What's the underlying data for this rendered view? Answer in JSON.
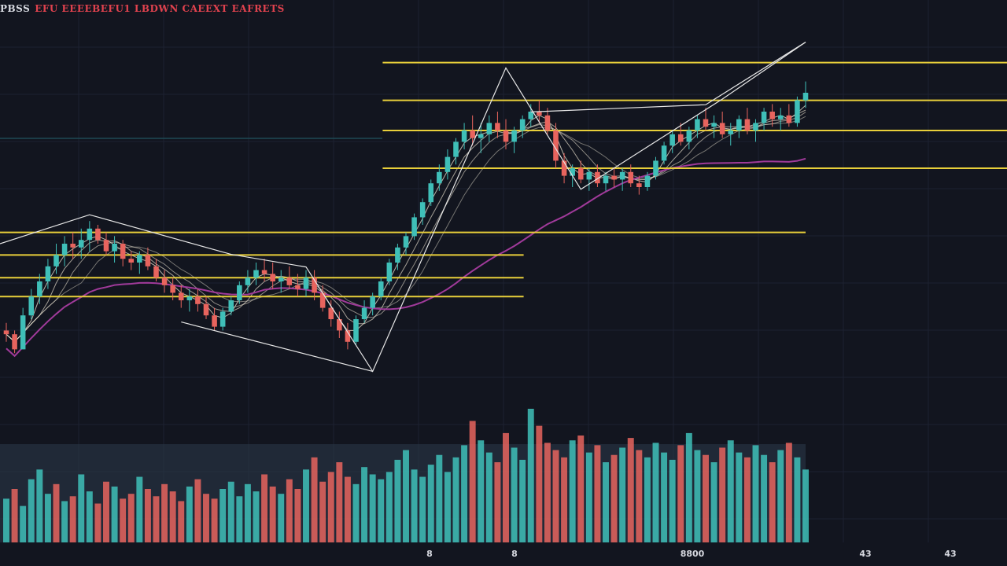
{
  "header": {
    "symbol": "PBSS",
    "title": "EFU EEEEBEFU1 LBDWN CAEEXT EAFRETS"
  },
  "colors": {
    "background": "#12151f",
    "up": "#3fbfb8",
    "down": "#e8645e",
    "level_line": "#e8cf3a",
    "pattern_line": "#e6e6e6",
    "long_ma": "#a03a9a",
    "volume_band": "#2b3a4a"
  },
  "chart_data": {
    "type": "candlestick",
    "title": "EFU EEEEBEFU1 LBDWN CAEEXT EAFRETS",
    "x_tick_labels": [
      "8",
      "8",
      "8800",
      "43",
      "43"
    ],
    "ylim": [
      0,
      100
    ],
    "grid": true,
    "legend": "none",
    "candles": [
      [
        27,
        29,
        24,
        26
      ],
      [
        26,
        27,
        21,
        22
      ],
      [
        22,
        33,
        22,
        31
      ],
      [
        31,
        38,
        30,
        36
      ],
      [
        36,
        42,
        34,
        40
      ],
      [
        40,
        46,
        38,
        44
      ],
      [
        44,
        50,
        42,
        47
      ],
      [
        47,
        52,
        44,
        50
      ],
      [
        50,
        53,
        46,
        49
      ],
      [
        49,
        54,
        46,
        51
      ],
      [
        51,
        56,
        48,
        54
      ],
      [
        54,
        55,
        50,
        51
      ],
      [
        51,
        53,
        47,
        48
      ],
      [
        48,
        52,
        45,
        50
      ],
      [
        50,
        51,
        44,
        46
      ],
      [
        46,
        48,
        43,
        45
      ],
      [
        45,
        48,
        42,
        47
      ],
      [
        47,
        49,
        43,
        44
      ],
      [
        44,
        46,
        40,
        41
      ],
      [
        41,
        43,
        37,
        39
      ],
      [
        39,
        41,
        35,
        37
      ],
      [
        37,
        39,
        33,
        35
      ],
      [
        35,
        38,
        32,
        36
      ],
      [
        36,
        38,
        32,
        34
      ],
      [
        34,
        36,
        30,
        31
      ],
      [
        31,
        33,
        27,
        28
      ],
      [
        28,
        33,
        27,
        32
      ],
      [
        32,
        36,
        31,
        35
      ],
      [
        35,
        40,
        34,
        39
      ],
      [
        39,
        43,
        37,
        41
      ],
      [
        41,
        45,
        39,
        43
      ],
      [
        43,
        46,
        40,
        42
      ],
      [
        42,
        45,
        38,
        40
      ],
      [
        40,
        43,
        37,
        41
      ],
      [
        41,
        44,
        38,
        39
      ],
      [
        39,
        42,
        36,
        38
      ],
      [
        38,
        43,
        36,
        41
      ],
      [
        41,
        43,
        35,
        37
      ],
      [
        37,
        39,
        32,
        33
      ],
      [
        33,
        35,
        28,
        30
      ],
      [
        30,
        32,
        25,
        27
      ],
      [
        27,
        29,
        22,
        24
      ],
      [
        24,
        31,
        23,
        30
      ],
      [
        30,
        35,
        29,
        33
      ],
      [
        33,
        37,
        31,
        36
      ],
      [
        36,
        41,
        35,
        40
      ],
      [
        40,
        46,
        39,
        45
      ],
      [
        45,
        50,
        43,
        49
      ],
      [
        49,
        53,
        47,
        52
      ],
      [
        52,
        58,
        51,
        57
      ],
      [
        57,
        62,
        55,
        61
      ],
      [
        61,
        67,
        60,
        66
      ],
      [
        66,
        71,
        64,
        69
      ],
      [
        69,
        75,
        67,
        73
      ],
      [
        73,
        78,
        71,
        77
      ],
      [
        77,
        82,
        75,
        80
      ],
      [
        80,
        84,
        76,
        78
      ],
      [
        78,
        82,
        74,
        79
      ],
      [
        79,
        84,
        77,
        82
      ],
      [
        82,
        85,
        78,
        80
      ],
      [
        80,
        83,
        75,
        77
      ],
      [
        77,
        81,
        74,
        80
      ],
      [
        80,
        84,
        78,
        83
      ],
      [
        83,
        87,
        81,
        85
      ],
      [
        85,
        88,
        82,
        84
      ],
      [
        84,
        86,
        79,
        80
      ],
      [
        80,
        82,
        70,
        72
      ],
      [
        72,
        74,
        66,
        68
      ],
      [
        68,
        71,
        65,
        70
      ],
      [
        70,
        72,
        66,
        67
      ],
      [
        67,
        70,
        64,
        69
      ],
      [
        69,
        71,
        65,
        66
      ],
      [
        66,
        69,
        64,
        68
      ],
      [
        68,
        70,
        65,
        67
      ],
      [
        67,
        70,
        64,
        69
      ],
      [
        69,
        71,
        65,
        66
      ],
      [
        66,
        68,
        63,
        65
      ],
      [
        65,
        69,
        64,
        68
      ],
      [
        68,
        73,
        67,
        72
      ],
      [
        72,
        77,
        71,
        76
      ],
      [
        76,
        80,
        74,
        79
      ],
      [
        79,
        82,
        76,
        77
      ],
      [
        77,
        81,
        75,
        80
      ],
      [
        80,
        84,
        78,
        83
      ],
      [
        83,
        86,
        80,
        81
      ],
      [
        81,
        84,
        78,
        82
      ],
      [
        82,
        85,
        78,
        79
      ],
      [
        79,
        82,
        76,
        80
      ],
      [
        80,
        84,
        78,
        83
      ],
      [
        83,
        86,
        79,
        80
      ],
      [
        80,
        83,
        77,
        82
      ],
      [
        82,
        86,
        80,
        85
      ],
      [
        85,
        87,
        81,
        83
      ],
      [
        83,
        86,
        80,
        84
      ],
      [
        84,
        87,
        81,
        82
      ],
      [
        82,
        89,
        81,
        88
      ],
      [
        88,
        93,
        86,
        90
      ]
    ],
    "volume": [
      18,
      22,
      15,
      26,
      30,
      20,
      24,
      17,
      19,
      28,
      21,
      16,
      25,
      23,
      18,
      20,
      27,
      22,
      19,
      24,
      21,
      17,
      23,
      26,
      20,
      18,
      22,
      25,
      19,
      24,
      21,
      28,
      23,
      20,
      26,
      22,
      30,
      35,
      25,
      29,
      33,
      27,
      24,
      31,
      28,
      26,
      29,
      34,
      38,
      30,
      27,
      32,
      36,
      29,
      35,
      40,
      50,
      42,
      37,
      33,
      45,
      39,
      34,
      55,
      48,
      41,
      38,
      35,
      42,
      44,
      37,
      40,
      33,
      36,
      39,
      43,
      38,
      35,
      41,
      37,
      34,
      40,
      45,
      38,
      36,
      33,
      39,
      42,
      37,
      35,
      40,
      36,
      33,
      38,
      41,
      35,
      30
    ],
    "volume_up": [
      true,
      false,
      true,
      true,
      true,
      true,
      false,
      true,
      false,
      true,
      true,
      false,
      false,
      true,
      false,
      false,
      true,
      false,
      false,
      false,
      false,
      false,
      true,
      false,
      false,
      false,
      true,
      true,
      true,
      true,
      true,
      false,
      false,
      true,
      false,
      false,
      true,
      false,
      false,
      false,
      false,
      false,
      true,
      true,
      true,
      true,
      true,
      true,
      true,
      true,
      true,
      true,
      true,
      true,
      true,
      true,
      false,
      true,
      true,
      false,
      false,
      true,
      true,
      true,
      false,
      false,
      false,
      false,
      true,
      false,
      true,
      false,
      true,
      false,
      true,
      false,
      false,
      true,
      true,
      true,
      true,
      false,
      true,
      true,
      false,
      true,
      false,
      true,
      true,
      false,
      true,
      true,
      false,
      true,
      false,
      true,
      true
    ],
    "level_lines": [
      {
        "value": 98,
        "from": 0.38,
        "to": 1.0
      },
      {
        "value": 88,
        "from": 0.38,
        "to": 1.0
      },
      {
        "value": 80,
        "from": 0.38,
        "to": 1.0
      },
      {
        "value": 70,
        "from": 0.38,
        "to": 1.0
      },
      {
        "value": 53,
        "from": 0.0,
        "to": 0.8
      },
      {
        "value": 47,
        "from": 0.0,
        "to": 0.52
      },
      {
        "value": 41,
        "from": 0.0,
        "to": 0.52
      },
      {
        "value": 36,
        "from": 0.0,
        "to": 0.52
      }
    ]
  }
}
